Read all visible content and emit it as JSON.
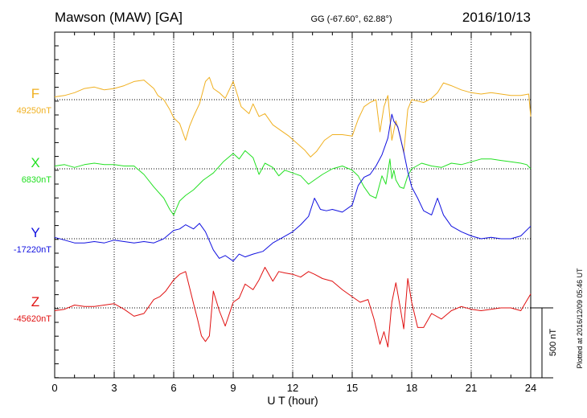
{
  "header": {
    "station": "Mawson (MAW)  [GA]",
    "coords": "GG (-67.60°,  62.88°)",
    "date": "2016/10/13"
  },
  "plotted_note": "Plotted at 2016/12/09 05:46 UT",
  "scale_label": "500 nT",
  "chart_data": {
    "type": "line",
    "title": "Mawson (MAW)  [GA]",
    "xlabel": "U T (hour)",
    "ylabel": "",
    "xlim": [
      0,
      24
    ],
    "x_ticks": [
      "0",
      "3",
      "6",
      "9",
      "12",
      "15",
      "18",
      "21",
      "24"
    ],
    "grid": true,
    "scale_bar_nT": 500,
    "colors": {
      "F": "#f0b020",
      "X": "#22e022",
      "Y": "#1010e0",
      "Z": "#e01010"
    },
    "series": [
      {
        "name": "F",
        "baseline_label": "49250nT",
        "baseline_nT": 49250,
        "x": [
          0,
          0.5,
          1,
          1.5,
          2,
          2.5,
          3,
          3.5,
          4,
          4.5,
          5,
          5.2,
          5.5,
          5.8,
          6,
          6.3,
          6.6,
          6.8,
          7,
          7.3,
          7.6,
          7.8,
          8,
          8.3,
          8.6,
          9,
          9.4,
          9.8,
          10,
          10.3,
          10.6,
          11,
          11.4,
          11.8,
          12.2,
          12.6,
          12.9,
          13.2,
          13.6,
          14,
          14.5,
          15,
          15.3,
          15.6,
          15.9,
          16.2,
          16.4,
          16.6,
          16.8,
          17,
          17.2,
          17.4,
          17.6,
          17.8,
          18,
          18.3,
          18.6,
          19,
          19.3,
          19.6,
          20,
          20.5,
          21,
          21.5,
          22,
          22.5,
          23,
          23.5,
          23.9,
          24
        ],
        "values": [
          49270,
          49280,
          49300,
          49330,
          49340,
          49320,
          49330,
          49350,
          49380,
          49390,
          49330,
          49280,
          49250,
          49180,
          49120,
          49080,
          48960,
          49060,
          49130,
          49220,
          49380,
          49410,
          49330,
          49300,
          49260,
          49380,
          49200,
          49150,
          49220,
          49130,
          49150,
          49070,
          49030,
          48990,
          48940,
          48890,
          48840,
          48880,
          48960,
          49000,
          49000,
          48990,
          49110,
          49200,
          49230,
          49250,
          49020,
          49200,
          49280,
          48960,
          49100,
          49000,
          48870,
          49180,
          49250,
          49240,
          49230,
          49260,
          49300,
          49370,
          49350,
          49320,
          49300,
          49290,
          49300,
          49290,
          49280,
          49280,
          49290,
          49130
        ]
      },
      {
        "name": "X",
        "baseline_label": "6830nT",
        "baseline_nT": 6830,
        "x": [
          0,
          0.5,
          1,
          1.5,
          2,
          2.5,
          3,
          3.5,
          4,
          4.5,
          5,
          5.5,
          5.8,
          6,
          6.3,
          6.6,
          7,
          7.5,
          8,
          8.5,
          9,
          9.3,
          9.6,
          10,
          10.3,
          10.6,
          11,
          11.3,
          11.6,
          12,
          12.4,
          12.8,
          13.1,
          13.5,
          14,
          14.5,
          15,
          15.3,
          15.6,
          15.9,
          16.2,
          16.5,
          16.7,
          16.9,
          17,
          17.1,
          17.2,
          17.4,
          17.6,
          17.8,
          18,
          18.5,
          19,
          19.5,
          20,
          20.5,
          21,
          21.5,
          22,
          22.5,
          23,
          23.5,
          23.8,
          24
        ],
        "values": [
          6850,
          6860,
          6840,
          6860,
          6870,
          6860,
          6860,
          6850,
          6850,
          6790,
          6700,
          6620,
          6540,
          6500,
          6600,
          6640,
          6680,
          6750,
          6800,
          6880,
          6940,
          6900,
          6960,
          6910,
          6790,
          6870,
          6840,
          6780,
          6820,
          6800,
          6780,
          6720,
          6750,
          6790,
          6830,
          6850,
          6820,
          6780,
          6700,
          6640,
          6620,
          6780,
          6720,
          6900,
          6760,
          6820,
          6750,
          6700,
          6690,
          6780,
          6830,
          6870,
          6850,
          6840,
          6870,
          6860,
          6880,
          6900,
          6900,
          6890,
          6880,
          6870,
          6860,
          6830
        ]
      },
      {
        "name": "Y",
        "baseline_label": "-17220nT",
        "baseline_nT": -17220,
        "x": [
          0,
          0.5,
          1,
          1.5,
          2,
          2.5,
          3,
          3.5,
          4,
          4.5,
          5,
          5.5,
          6,
          6.3,
          6.6,
          7,
          7.3,
          7.6,
          8,
          8.3,
          8.6,
          9,
          9.3,
          9.6,
          10,
          10.5,
          11,
          11.5,
          12,
          12.4,
          12.8,
          13.1,
          13.4,
          13.7,
          14,
          14.5,
          15,
          15.3,
          15.6,
          15.9,
          16.2,
          16.5,
          16.8,
          17,
          17.1,
          17.3,
          17.6,
          17.8,
          18,
          18.3,
          18.6,
          19,
          19.3,
          19.6,
          20,
          20.5,
          21,
          21.5,
          22,
          22.5,
          23,
          23.5,
          24
        ],
        "values": [
          -17210,
          -17230,
          -17250,
          -17250,
          -17240,
          -17250,
          -17230,
          -17240,
          -17250,
          -17240,
          -17250,
          -17220,
          -17160,
          -17150,
          -17120,
          -17150,
          -17110,
          -17170,
          -17300,
          -17360,
          -17340,
          -17380,
          -17330,
          -17350,
          -17330,
          -17310,
          -17250,
          -17210,
          -17170,
          -17120,
          -17060,
          -16930,
          -17010,
          -17020,
          -17010,
          -17030,
          -16980,
          -16840,
          -16780,
          -16760,
          -16700,
          -16620,
          -16500,
          -16330,
          -16380,
          -16420,
          -16600,
          -16740,
          -16850,
          -16930,
          -17020,
          -17050,
          -16930,
          -17050,
          -17130,
          -17170,
          -17200,
          -17220,
          -17210,
          -17220,
          -17220,
          -17200,
          -17130
        ]
      },
      {
        "name": "Z",
        "baseline_label": "-45620nT",
        "baseline_nT": -45620,
        "x": [
          0,
          0.5,
          1,
          1.5,
          2,
          2.5,
          3,
          3.5,
          4,
          4.5,
          5,
          5.3,
          5.6,
          6,
          6.3,
          6.6,
          7,
          7.2,
          7.4,
          7.6,
          7.8,
          8,
          8.3,
          8.6,
          9,
          9.3,
          9.6,
          10,
          10.3,
          10.6,
          11,
          11.3,
          11.6,
          12,
          12.4,
          12.8,
          13.1,
          13.5,
          14,
          14.5,
          15,
          15.4,
          15.8,
          16.1,
          16.4,
          16.6,
          16.8,
          17,
          17.2,
          17.4,
          17.6,
          17.8,
          18,
          18.3,
          18.6,
          19,
          19.5,
          20,
          20.5,
          21,
          21.5,
          22,
          22.5,
          23,
          23.5,
          24
        ],
        "values": [
          -45640,
          -45630,
          -45600,
          -45610,
          -45610,
          -45600,
          -45590,
          -45630,
          -45680,
          -45660,
          -45560,
          -45540,
          -45500,
          -45420,
          -45380,
          -45360,
          -45590,
          -45700,
          -45820,
          -45860,
          -45820,
          -45500,
          -45640,
          -45750,
          -45580,
          -45550,
          -45450,
          -45490,
          -45420,
          -45330,
          -45430,
          -45360,
          -45370,
          -45380,
          -45400,
          -45360,
          -45380,
          -45410,
          -45430,
          -45490,
          -45540,
          -45580,
          -45560,
          -45700,
          -45880,
          -45790,
          -45900,
          -45580,
          -45440,
          -45600,
          -45770,
          -45410,
          -45580,
          -45760,
          -45760,
          -45660,
          -45700,
          -45640,
          -45610,
          -45630,
          -45640,
          -45630,
          -45620,
          -45620,
          -45640,
          -45520
        ]
      }
    ]
  }
}
